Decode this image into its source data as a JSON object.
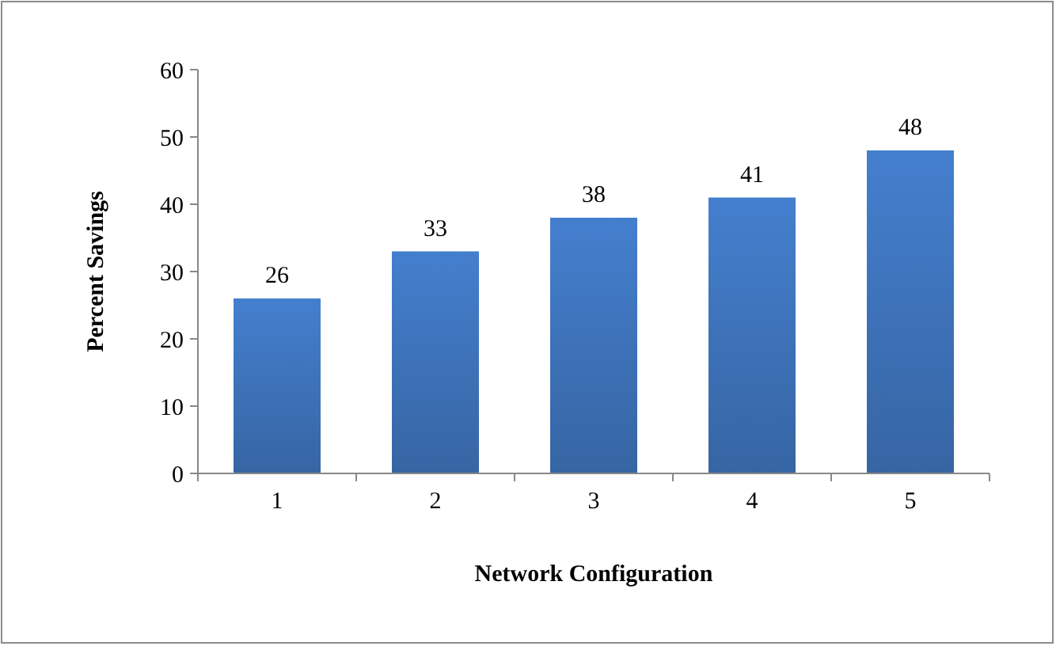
{
  "chart_data": {
    "type": "bar",
    "xlabel": "Network Configuration",
    "ylabel": "Percent Savings",
    "categories": [
      "1",
      "2",
      "3",
      "4",
      "5"
    ],
    "values": [
      26,
      33,
      38,
      41,
      48
    ],
    "color": "#3d72b9",
    "ylim": [
      0,
      60
    ],
    "yticks": [
      0,
      10,
      20,
      30,
      40,
      50,
      60
    ],
    "grid": false,
    "data_labels": true
  }
}
